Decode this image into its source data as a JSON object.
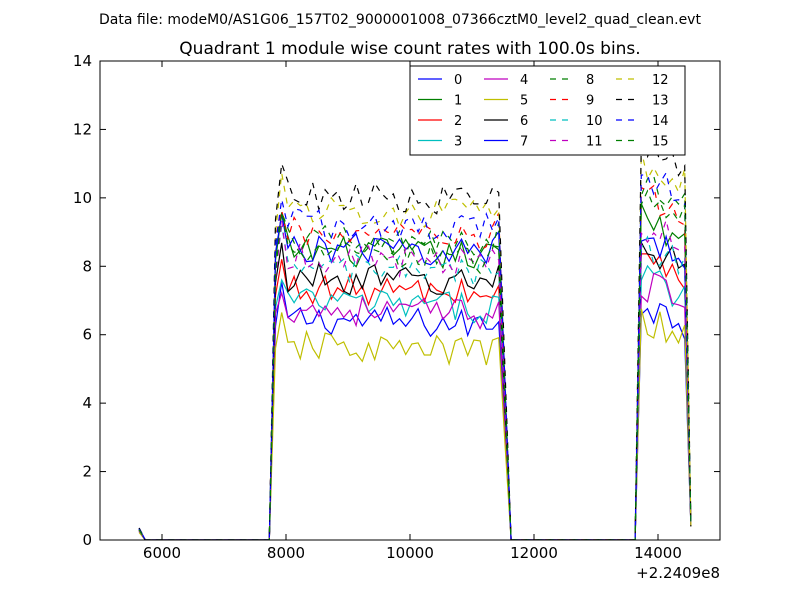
{
  "suptitle": "Data file: modeM0/AS1G06_157T02_9000001008_07366cztM0_level2_quad_clean.evt",
  "chart_data": {
    "type": "line",
    "title": "Quadrant 1 module wise count rates with 100.0s bins.",
    "xlabel": "",
    "ylabel": "",
    "x_offset_label": "+2.2409e8",
    "xlim": [
      5000,
      15000
    ],
    "ylim": [
      0,
      14
    ],
    "xticks": [
      6000,
      8000,
      10000,
      12000,
      14000
    ],
    "yticks": [
      0,
      2,
      4,
      6,
      8,
      10,
      12,
      14
    ],
    "grid": false,
    "legend_position": "top-right",
    "legend_columns": 4,
    "x_segments": [
      {
        "start": 5630,
        "step": 100,
        "count": 12
      },
      {
        "start": 7730,
        "step": 100,
        "count": 40
      },
      {
        "start": 13630,
        "step": 100,
        "count": 10
      }
    ],
    "series": [
      {
        "name": "0",
        "color": "#0000ff",
        "dash": "solid",
        "level": 6.5,
        "pre": 0.35,
        "c2": 7.0
      },
      {
        "name": "1",
        "color": "#007f00",
        "dash": "solid",
        "level": 8.5,
        "pre": 0.3,
        "c2": 9.5
      },
      {
        "name": "2",
        "color": "#ff0000",
        "dash": "solid",
        "level": 7.4,
        "pre": 0.28,
        "c2": 8.3
      },
      {
        "name": "3",
        "color": "#00bfbf",
        "dash": "solid",
        "level": 7.0,
        "pre": 0.25,
        "c2": 7.8
      },
      {
        "name": "4",
        "color": "#bf00bf",
        "dash": "solid",
        "level": 6.8,
        "pre": 0.25,
        "c2": 7.6
      },
      {
        "name": "5",
        "color": "#bfbf00",
        "dash": "solid",
        "level": 5.7,
        "pre": 0.22,
        "c2": 6.5
      },
      {
        "name": "6",
        "color": "#000000",
        "dash": "solid",
        "level": 7.7,
        "pre": 0.3,
        "c2": 8.7
      },
      {
        "name": "7",
        "color": "#0000ff",
        "dash": "solid",
        "level": 8.6,
        "pre": 0.32,
        "c2": 9.0
      },
      {
        "name": "8",
        "color": "#007f00",
        "dash": "dashed",
        "level": 8.8,
        "pre": 0.3,
        "c2": 10.6
      },
      {
        "name": "9",
        "color": "#ff0000",
        "dash": "dashed",
        "level": 9.0,
        "pre": 0.3,
        "c2": 10.1
      },
      {
        "name": "10",
        "color": "#00bfbf",
        "dash": "dashed",
        "level": 8.0,
        "pre": 0.28,
        "c2": 8.6
      },
      {
        "name": "11",
        "color": "#bf00bf",
        "dash": "dashed",
        "level": 8.3,
        "pre": 0.28,
        "c2": 9.3
      },
      {
        "name": "12",
        "color": "#bfbf00",
        "dash": "dashed",
        "level": 9.7,
        "pre": 0.3,
        "c2": 11.0
      },
      {
        "name": "13",
        "color": "#000000",
        "dash": "dashed",
        "level": 10.1,
        "pre": 0.35,
        "c2": 11.5
      },
      {
        "name": "14",
        "color": "#0000ff",
        "dash": "dashed",
        "level": 9.3,
        "pre": 0.32,
        "c2": 10.8
      },
      {
        "name": "15",
        "color": "#007f00",
        "dash": "dashed",
        "level": 8.4,
        "pre": 0.3,
        "c2": 10.2
      }
    ]
  }
}
